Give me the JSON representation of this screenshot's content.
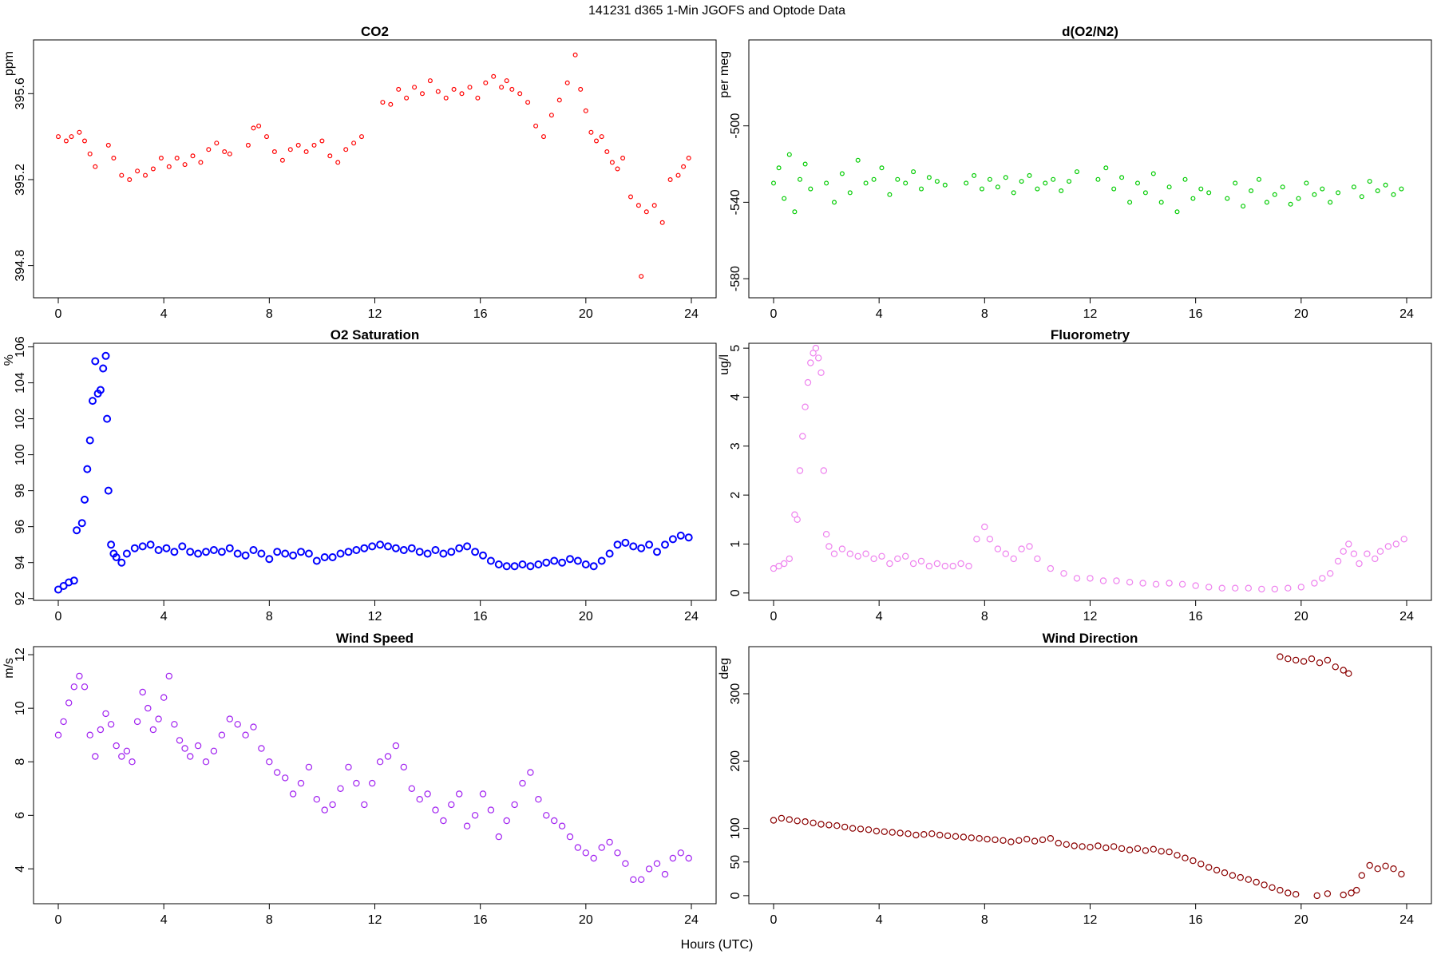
{
  "title": "141231   d365   1-Min  JGOFS and Optode Data",
  "xlabel": "Hours (UTC)",
  "chart_data": [
    {
      "id": "co2",
      "type": "scatter",
      "title": "CO2",
      "ylabel": "ppm",
      "color": "#ff0000",
      "xlim": [
        0,
        24
      ],
      "ylim": [
        394.65,
        395.85
      ],
      "xticks": [
        0,
        4,
        8,
        12,
        16,
        20,
        24
      ],
      "yticks": [
        394.8,
        395.2,
        395.6
      ],
      "ytick_labels": [
        "394.8",
        "395.2",
        "395.6"
      ],
      "x": [
        0.0,
        0.3,
        0.5,
        0.8,
        1.0,
        1.2,
        1.4,
        1.9,
        2.1,
        2.4,
        2.7,
        3.0,
        3.3,
        3.6,
        3.9,
        4.2,
        4.5,
        4.8,
        5.1,
        5.4,
        5.7,
        6.0,
        6.3,
        6.5,
        7.2,
        7.4,
        7.6,
        7.9,
        8.2,
        8.5,
        8.8,
        9.1,
        9.4,
        9.7,
        10.0,
        10.3,
        10.6,
        10.9,
        11.2,
        11.5,
        12.3,
        12.6,
        12.9,
        13.2,
        13.5,
        13.8,
        14.1,
        14.4,
        14.7,
        15.0,
        15.3,
        15.6,
        15.9,
        16.2,
        16.5,
        16.8,
        17.0,
        17.2,
        17.5,
        17.8,
        18.1,
        18.4,
        18.7,
        19.0,
        19.3,
        19.6,
        19.8,
        20.0,
        20.2,
        20.4,
        20.6,
        20.8,
        21.0,
        21.2,
        21.4,
        21.7,
        22.0,
        22.1,
        22.3,
        22.6,
        22.9,
        23.2,
        23.5,
        23.7,
        23.9
      ],
      "y": [
        395.4,
        395.38,
        395.4,
        395.42,
        395.38,
        395.32,
        395.26,
        395.36,
        395.3,
        395.22,
        395.2,
        395.24,
        395.22,
        395.25,
        395.3,
        395.26,
        395.3,
        395.27,
        395.31,
        395.28,
        395.34,
        395.37,
        395.33,
        395.32,
        395.36,
        395.44,
        395.45,
        395.4,
        395.33,
        395.29,
        395.34,
        395.36,
        395.33,
        395.36,
        395.38,
        395.31,
        395.28,
        395.34,
        395.37,
        395.4,
        395.56,
        395.55,
        395.62,
        395.58,
        395.63,
        395.6,
        395.66,
        395.61,
        395.58,
        395.62,
        395.6,
        395.63,
        395.58,
        395.65,
        395.68,
        395.63,
        395.66,
        395.62,
        395.6,
        395.56,
        395.45,
        395.4,
        395.5,
        395.57,
        395.65,
        395.78,
        395.62,
        395.52,
        395.42,
        395.38,
        395.4,
        395.33,
        395.28,
        395.25,
        395.3,
        395.12,
        395.08,
        394.75,
        395.05,
        395.08,
        395.0,
        395.2,
        395.22,
        395.26,
        395.3
      ]
    },
    {
      "id": "do2n2",
      "type": "scatter",
      "title": "d(O2/N2)",
      "ylabel": "per meg",
      "color": "#00cc00",
      "xlim": [
        0,
        24
      ],
      "ylim": [
        -590,
        -455
      ],
      "xticks": [
        0,
        4,
        8,
        12,
        16,
        20,
        24
      ],
      "yticks": [
        -580,
        -540,
        -500
      ],
      "ytick_labels": [
        "-580",
        "-540",
        "-500"
      ],
      "x": [
        0.0,
        0.2,
        0.4,
        0.6,
        0.8,
        1.0,
        1.2,
        1.4,
        2.0,
        2.3,
        2.6,
        2.9,
        3.2,
        3.5,
        3.8,
        4.1,
        4.4,
        4.7,
        5.0,
        5.3,
        5.6,
        5.9,
        6.2,
        6.5,
        7.3,
        7.6,
        7.9,
        8.2,
        8.5,
        8.8,
        9.1,
        9.4,
        9.7,
        10.0,
        10.3,
        10.6,
        10.9,
        11.2,
        11.5,
        12.3,
        12.6,
        12.9,
        13.2,
        13.5,
        13.8,
        14.1,
        14.4,
        14.7,
        15.0,
        15.3,
        15.6,
        15.9,
        16.2,
        16.5,
        17.2,
        17.5,
        17.8,
        18.1,
        18.4,
        18.7,
        19.0,
        19.3,
        19.6,
        19.9,
        20.2,
        20.5,
        20.8,
        21.1,
        21.4,
        22.0,
        22.3,
        22.6,
        22.9,
        23.2,
        23.5,
        23.8
      ],
      "y": [
        -530,
        -522,
        -538,
        -515,
        -545,
        -528,
        -520,
        -533,
        -530,
        -540,
        -525,
        -535,
        -518,
        -530,
        -528,
        -522,
        -536,
        -528,
        -530,
        -524,
        -533,
        -527,
        -529,
        -531,
        -530,
        -526,
        -533,
        -528,
        -532,
        -527,
        -535,
        -529,
        -526,
        -533,
        -530,
        -528,
        -534,
        -529,
        -524,
        -528,
        -522,
        -533,
        -527,
        -540,
        -530,
        -535,
        -525,
        -540,
        -532,
        -545,
        -528,
        -538,
        -533,
        -535,
        -538,
        -530,
        -542,
        -534,
        -528,
        -540,
        -536,
        -532,
        -541,
        -538,
        -530,
        -536,
        -533,
        -540,
        -535,
        -532,
        -537,
        -529,
        -534,
        -531,
        -536,
        -533
      ]
    },
    {
      "id": "o2sat",
      "type": "scatter",
      "title": "O2 Saturation",
      "ylabel": "%",
      "color": "#0000ff",
      "xlim": [
        0,
        24
      ],
      "ylim": [
        91.9,
        106.2
      ],
      "xticks": [
        0,
        4,
        8,
        12,
        16,
        20,
        24
      ],
      "yticks": [
        92,
        94,
        96,
        98,
        100,
        102,
        104,
        106
      ],
      "ytick_labels": [
        "92",
        "94",
        "96",
        "98",
        "100",
        "102",
        "104",
        "106"
      ],
      "x": [
        0.0,
        0.2,
        0.4,
        0.6,
        0.7,
        0.9,
        1.0,
        1.1,
        1.2,
        1.3,
        1.4,
        1.5,
        1.6,
        1.7,
        1.8,
        1.85,
        1.9,
        2.0,
        2.1,
        2.2,
        2.4,
        2.6,
        2.9,
        3.2,
        3.5,
        3.8,
        4.1,
        4.4,
        4.7,
        5.0,
        5.3,
        5.6,
        5.9,
        6.2,
        6.5,
        6.8,
        7.1,
        7.4,
        7.7,
        8.0,
        8.3,
        8.6,
        8.9,
        9.2,
        9.5,
        9.8,
        10.1,
        10.4,
        10.7,
        11.0,
        11.3,
        11.6,
        11.9,
        12.2,
        12.5,
        12.8,
        13.1,
        13.4,
        13.7,
        14.0,
        14.3,
        14.6,
        14.9,
        15.2,
        15.5,
        15.8,
        16.1,
        16.4,
        16.7,
        17.0,
        17.3,
        17.6,
        17.9,
        18.2,
        18.5,
        18.8,
        19.1,
        19.4,
        19.7,
        20.0,
        20.3,
        20.6,
        20.9,
        21.2,
        21.5,
        21.8,
        22.1,
        22.4,
        22.7,
        23.0,
        23.3,
        23.6,
        23.9
      ],
      "y": [
        92.5,
        92.7,
        92.9,
        93.0,
        95.8,
        96.2,
        97.5,
        99.2,
        100.8,
        103.0,
        105.2,
        103.4,
        103.6,
        104.8,
        105.5,
        102.0,
        98.0,
        95.0,
        94.5,
        94.3,
        94.0,
        94.5,
        94.8,
        94.9,
        95.0,
        94.7,
        94.8,
        94.6,
        94.9,
        94.6,
        94.5,
        94.6,
        94.7,
        94.6,
        94.8,
        94.5,
        94.4,
        94.7,
        94.5,
        94.2,
        94.6,
        94.5,
        94.4,
        94.6,
        94.5,
        94.1,
        94.3,
        94.3,
        94.5,
        94.6,
        94.7,
        94.8,
        94.9,
        95.0,
        94.9,
        94.8,
        94.7,
        94.8,
        94.6,
        94.5,
        94.7,
        94.5,
        94.6,
        94.8,
        94.9,
        94.6,
        94.4,
        94.1,
        93.9,
        93.8,
        93.8,
        93.9,
        93.8,
        93.9,
        94.0,
        94.1,
        94.0,
        94.2,
        94.1,
        93.9,
        93.8,
        94.1,
        94.5,
        95.0,
        95.1,
        94.9,
        94.8,
        95.0,
        94.6,
        95.0,
        95.3,
        95.5,
        95.4
      ]
    },
    {
      "id": "fluor",
      "type": "scatter",
      "title": "Fluorometry",
      "ylabel": "ug/l",
      "color": "#ee82ee",
      "xlim": [
        0,
        24
      ],
      "ylim": [
        -0.15,
        5.1
      ],
      "xticks": [
        0,
        4,
        8,
        12,
        16,
        20,
        24
      ],
      "yticks": [
        0,
        1,
        2,
        3,
        4,
        5
      ],
      "ytick_labels": [
        "0",
        "1",
        "2",
        "3",
        "4",
        "5"
      ],
      "x": [
        0.0,
        0.2,
        0.4,
        0.6,
        0.8,
        0.9,
        1.0,
        1.1,
        1.2,
        1.3,
        1.4,
        1.5,
        1.6,
        1.7,
        1.8,
        1.9,
        2.0,
        2.1,
        2.3,
        2.6,
        2.9,
        3.2,
        3.5,
        3.8,
        4.1,
        4.4,
        4.7,
        5.0,
        5.3,
        5.6,
        5.9,
        6.2,
        6.5,
        6.8,
        7.1,
        7.4,
        7.7,
        8.0,
        8.2,
        8.5,
        8.8,
        9.1,
        9.4,
        9.7,
        10.0,
        10.5,
        11.0,
        11.5,
        12.0,
        12.5,
        13.0,
        13.5,
        14.0,
        14.5,
        15.0,
        15.5,
        16.0,
        16.5,
        17.0,
        17.5,
        18.0,
        18.5,
        19.0,
        19.5,
        20.0,
        20.5,
        20.8,
        21.1,
        21.4,
        21.6,
        21.8,
        22.0,
        22.2,
        22.5,
        22.8,
        23.0,
        23.3,
        23.6,
        23.9
      ],
      "y": [
        0.5,
        0.55,
        0.6,
        0.7,
        1.6,
        1.5,
        2.5,
        3.2,
        3.8,
        4.3,
        4.7,
        4.9,
        5.0,
        4.8,
        4.5,
        2.5,
        1.2,
        0.95,
        0.8,
        0.9,
        0.8,
        0.75,
        0.8,
        0.7,
        0.75,
        0.6,
        0.7,
        0.75,
        0.6,
        0.65,
        0.55,
        0.6,
        0.55,
        0.55,
        0.6,
        0.55,
        1.1,
        1.35,
        1.1,
        0.9,
        0.8,
        0.7,
        0.9,
        0.95,
        0.7,
        0.5,
        0.4,
        0.3,
        0.3,
        0.25,
        0.25,
        0.22,
        0.2,
        0.18,
        0.2,
        0.18,
        0.15,
        0.12,
        0.1,
        0.1,
        0.1,
        0.08,
        0.08,
        0.1,
        0.12,
        0.2,
        0.3,
        0.4,
        0.65,
        0.85,
        1.0,
        0.8,
        0.6,
        0.8,
        0.7,
        0.85,
        0.95,
        1.0,
        1.1
      ]
    },
    {
      "id": "wspd",
      "type": "scatter",
      "title": "Wind Speed",
      "ylabel": "m/s",
      "color": "#a020f0",
      "xlim": [
        0,
        24
      ],
      "ylim": [
        2.7,
        12.3
      ],
      "xticks": [
        0,
        4,
        8,
        12,
        16,
        20,
        24
      ],
      "yticks": [
        4,
        6,
        8,
        10,
        12
      ],
      "ytick_labels": [
        "4",
        "6",
        "8",
        "10",
        "12"
      ],
      "x": [
        0.0,
        0.2,
        0.4,
        0.6,
        0.8,
        1.0,
        1.2,
        1.4,
        1.6,
        1.8,
        2.0,
        2.2,
        2.4,
        2.6,
        2.8,
        3.0,
        3.2,
        3.4,
        3.6,
        3.8,
        4.0,
        4.2,
        4.4,
        4.6,
        4.8,
        5.0,
        5.3,
        5.6,
        5.9,
        6.2,
        6.5,
        6.8,
        7.1,
        7.4,
        7.7,
        8.0,
        8.3,
        8.6,
        8.9,
        9.2,
        9.5,
        9.8,
        10.1,
        10.4,
        10.7,
        11.0,
        11.3,
        11.6,
        11.9,
        12.2,
        12.5,
        12.8,
        13.1,
        13.4,
        13.7,
        14.0,
        14.3,
        14.6,
        14.9,
        15.2,
        15.5,
        15.8,
        16.1,
        16.4,
        16.7,
        17.0,
        17.3,
        17.6,
        17.9,
        18.2,
        18.5,
        18.8,
        19.1,
        19.4,
        19.7,
        20.0,
        20.3,
        20.6,
        20.9,
        21.2,
        21.5,
        21.8,
        22.1,
        22.4,
        22.7,
        23.0,
        23.3,
        23.6,
        23.9
      ],
      "y": [
        9.0,
        9.5,
        10.2,
        10.8,
        11.2,
        10.8,
        9.0,
        8.2,
        9.2,
        9.8,
        9.4,
        8.6,
        8.2,
        8.4,
        8.0,
        9.5,
        10.6,
        10.0,
        9.2,
        9.6,
        10.4,
        11.2,
        9.4,
        8.8,
        8.5,
        8.2,
        8.6,
        8.0,
        8.4,
        9.0,
        9.6,
        9.4,
        9.0,
        9.3,
        8.5,
        8.0,
        7.6,
        7.4,
        6.8,
        7.2,
        7.8,
        6.6,
        6.2,
        6.4,
        7.0,
        7.8,
        7.2,
        6.4,
        7.2,
        8.0,
        8.2,
        8.6,
        7.8,
        7.0,
        6.6,
        6.8,
        6.2,
        5.8,
        6.4,
        6.8,
        5.6,
        6.0,
        6.8,
        6.2,
        5.2,
        5.8,
        6.4,
        7.2,
        7.6,
        6.6,
        6.0,
        5.8,
        5.6,
        5.2,
        4.8,
        4.6,
        4.4,
        4.8,
        5.0,
        4.6,
        4.2,
        3.6,
        3.6,
        4.0,
        4.2,
        3.8,
        4.4,
        4.6,
        4.4
      ]
    },
    {
      "id": "wdir",
      "type": "scatter",
      "title": "Wind Direction",
      "ylabel": "deg",
      "color": "#8b0000",
      "xlim": [
        0,
        24
      ],
      "ylim": [
        -12,
        370
      ],
      "xticks": [
        0,
        4,
        8,
        12,
        16,
        20,
        24
      ],
      "yticks": [
        0,
        50,
        100,
        200,
        300
      ],
      "ytick_labels": [
        "0",
        "50",
        "100",
        "200",
        "300"
      ],
      "x": [
        0.0,
        0.3,
        0.6,
        0.9,
        1.2,
        1.5,
        1.8,
        2.1,
        2.4,
        2.7,
        3.0,
        3.3,
        3.6,
        3.9,
        4.2,
        4.5,
        4.8,
        5.1,
        5.4,
        5.7,
        6.0,
        6.3,
        6.6,
        6.9,
        7.2,
        7.5,
        7.8,
        8.1,
        8.4,
        8.7,
        9.0,
        9.3,
        9.6,
        9.9,
        10.2,
        10.5,
        10.8,
        11.1,
        11.4,
        11.7,
        12.0,
        12.3,
        12.6,
        12.9,
        13.2,
        13.5,
        13.8,
        14.1,
        14.4,
        14.7,
        15.0,
        15.3,
        15.6,
        15.9,
        16.2,
        16.5,
        16.8,
        17.1,
        17.4,
        17.7,
        18.0,
        18.3,
        18.6,
        18.9,
        19.2,
        19.5,
        19.2,
        19.5,
        19.8,
        20.1,
        20.4,
        20.7,
        21.0,
        21.3,
        21.6,
        21.8,
        19.8,
        20.6,
        21.0,
        21.6,
        21.9,
        22.1,
        22.3,
        22.6,
        22.9,
        23.2,
        23.5,
        23.8
      ],
      "y": [
        112,
        115,
        113,
        111,
        110,
        108,
        106,
        105,
        104,
        102,
        100,
        99,
        98,
        96,
        95,
        94,
        93,
        92,
        90,
        91,
        92,
        90,
        89,
        88,
        87,
        86,
        85,
        84,
        83,
        82,
        80,
        82,
        84,
        81,
        83,
        85,
        78,
        76,
        74,
        73,
        72,
        74,
        71,
        73,
        70,
        68,
        70,
        67,
        69,
        66,
        65,
        60,
        56,
        52,
        47,
        42,
        38,
        34,
        30,
        27,
        24,
        20,
        16,
        12,
        8,
        4,
        355,
        352,
        350,
        348,
        352,
        346,
        350,
        340,
        335,
        330,
        2,
        0,
        3,
        1,
        4,
        8,
        30,
        45,
        40,
        44,
        40,
        32
      ]
    }
  ]
}
